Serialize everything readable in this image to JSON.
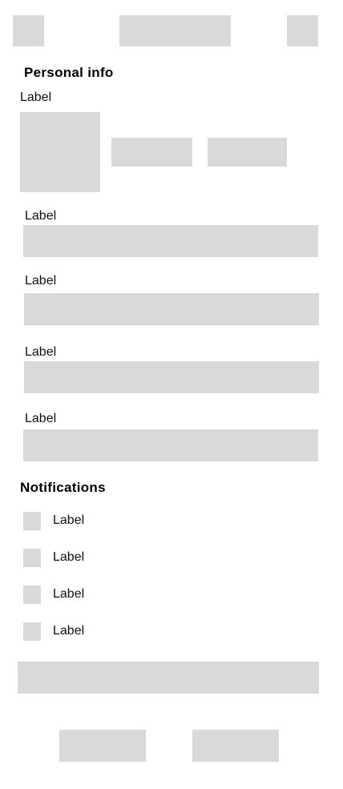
{
  "header": {},
  "personal_info": {
    "heading": "Personal info",
    "photo_label": "Label",
    "fields": [
      {
        "label": "Label"
      },
      {
        "label": "Label"
      },
      {
        "label": "Label"
      },
      {
        "label": "Label"
      }
    ]
  },
  "notifications": {
    "heading": "Notifications",
    "items": [
      {
        "label": "Label"
      },
      {
        "label": "Label"
      },
      {
        "label": "Label"
      },
      {
        "label": "Label"
      }
    ]
  },
  "colors": {
    "placeholder": "#d9d9d9",
    "background": "#ffffff",
    "text": "#111111"
  }
}
